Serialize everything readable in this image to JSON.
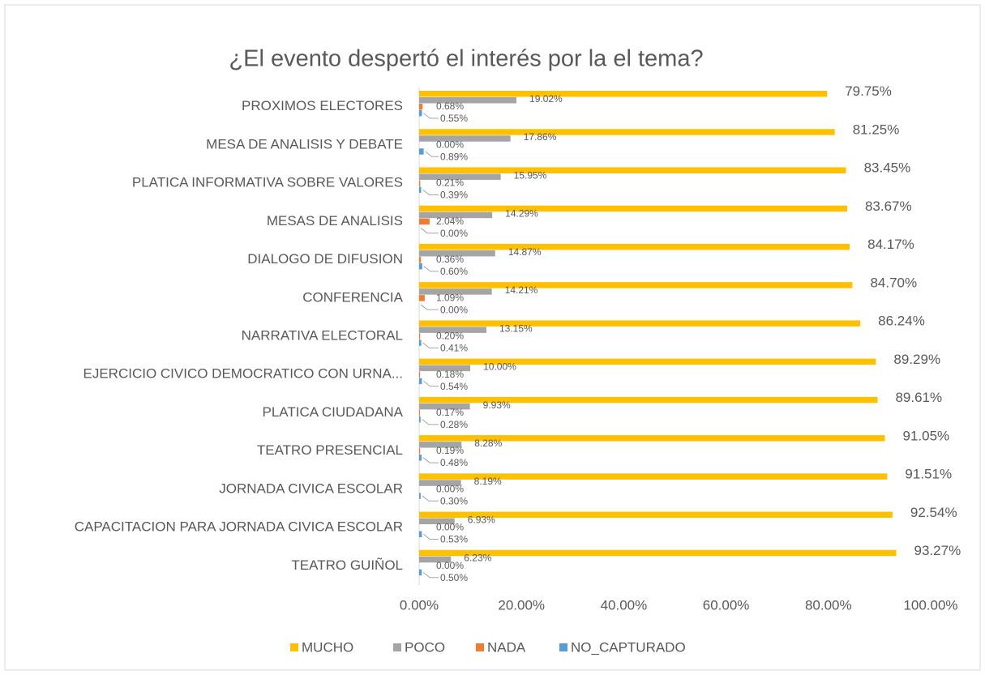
{
  "chart_data": {
    "type": "hbar",
    "title": "¿El evento despertó el interés por la el tema?",
    "categories": [
      "PROXIMOS ELECTORES",
      "MESA DE ANALISIS Y DEBATE",
      "PLATICA INFORMATIVA SOBRE VALORES",
      "MESAS DE ANALISIS",
      "DIALOGO DE DIFUSION",
      "CONFERENCIA",
      "NARRATIVA ELECTORAL",
      "EJERCICIO CIVICO DEMOCRATICO CON URNA...",
      "PLATICA CIUDADANA",
      "TEATRO PRESENCIAL",
      "JORNADA CIVICA ESCOLAR",
      "CAPACITACION PARA JORNADA CIVICA ESCOLAR",
      "TEATRO GUIÑOL"
    ],
    "series": [
      {
        "name": "MUCHO",
        "color": "#ffc000",
        "values": [
          79.75,
          81.25,
          83.45,
          83.67,
          84.17,
          84.7,
          86.24,
          89.29,
          89.61,
          91.05,
          91.51,
          92.54,
          93.27
        ],
        "value_labels": [
          "79.75%",
          "81.25%",
          "83.45%",
          "83.67%",
          "84.17%",
          "84.70%",
          "86.24%",
          "89.29%",
          "89.61%",
          "91.05%",
          "91.51%",
          "92.54%",
          "93.27%"
        ]
      },
      {
        "name": "POCO",
        "color": "#a5a5a5",
        "values": [
          19.02,
          17.86,
          15.95,
          14.29,
          14.87,
          14.21,
          13.15,
          10.0,
          9.93,
          8.28,
          8.19,
          6.93,
          6.23
        ],
        "value_labels": [
          "19.02%",
          "17.86%",
          "15.95%",
          "14.29%",
          "14.87%",
          "14.21%",
          "13.15%",
          "10.00%",
          "9.93%",
          "8.28%",
          "8.19%",
          "6.93%",
          "6.23%"
        ]
      },
      {
        "name": "NADA",
        "color": "#ed7d31",
        "values": [
          0.68,
          0.0,
          0.21,
          2.04,
          0.36,
          1.09,
          0.2,
          0.18,
          0.17,
          0.19,
          0.0,
          0.0,
          0.0
        ],
        "value_labels": [
          "0.68%",
          "0.00%",
          "0.21%",
          "2.04%",
          "0.36%",
          "1.09%",
          "0.20%",
          "0.18%",
          "0.17%",
          "0.19%",
          "0.00%",
          "0.00%",
          "0.00%"
        ]
      },
      {
        "name": "NO_CAPTURADO",
        "color": "#5b9bd5",
        "values": [
          0.55,
          0.89,
          0.39,
          0.0,
          0.6,
          0.0,
          0.41,
          0.54,
          0.28,
          0.48,
          0.3,
          0.53,
          0.5
        ],
        "value_labels": [
          "0.55%",
          "0.89%",
          "0.39%",
          "0.00%",
          "0.60%",
          "0.00%",
          "0.41%",
          "0.54%",
          "0.28%",
          "0.48%",
          "0.30%",
          "0.53%",
          "0.50%"
        ]
      }
    ],
    "xlim": [
      0,
      100
    ],
    "xticks": [
      {
        "value": 0,
        "label": "0.00%"
      },
      {
        "value": 20,
        "label": "20.00%"
      },
      {
        "value": 40,
        "label": "40.00%"
      },
      {
        "value": 60,
        "label": "60.00%"
      },
      {
        "value": 80,
        "label": "80.00%"
      },
      {
        "value": 100,
        "label": "100.00%"
      }
    ],
    "grid": false,
    "legend": "bottom"
  }
}
